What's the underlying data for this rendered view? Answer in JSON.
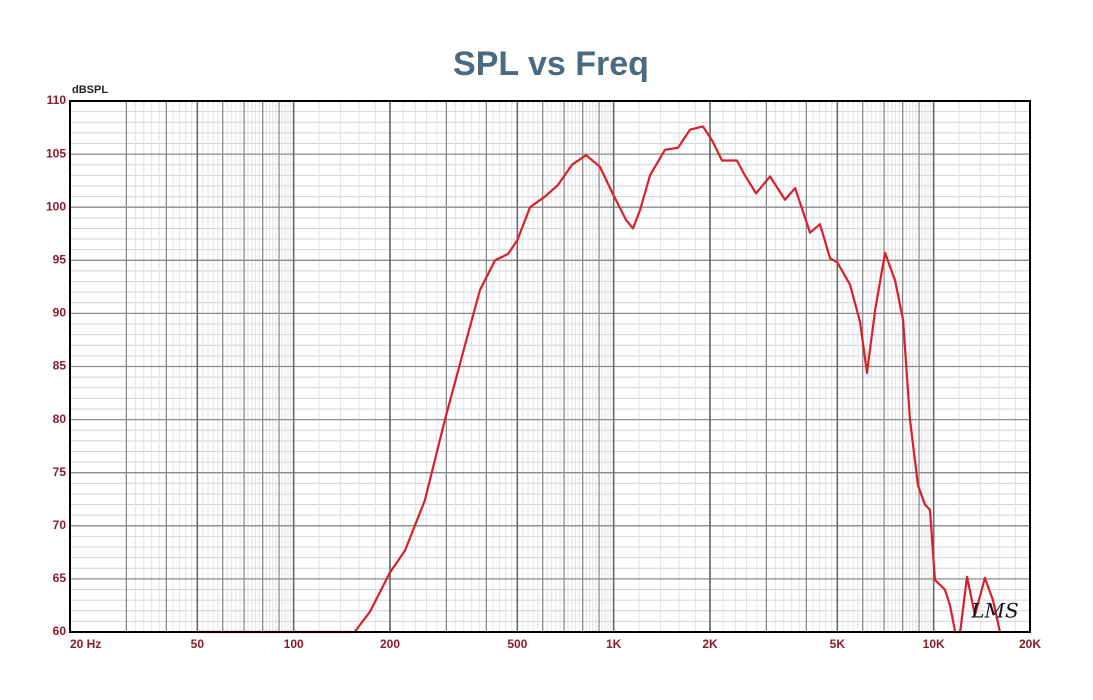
{
  "chart_data": {
    "type": "line",
    "title": "SPL vs Freq",
    "y_label": "dBSPL",
    "annotation": "LMS",
    "log_x": true,
    "grid": true,
    "x": [
      50,
      155,
      173,
      200,
      223,
      257,
      297,
      343,
      382,
      426,
      468,
      500,
      548,
      610,
      670,
      741,
      820,
      906,
      1000,
      1093,
      1149,
      1208,
      1299,
      1446,
      1589,
      1732,
      1902,
      2029,
      2180,
      2427,
      2571,
      2786,
      3081,
      3430,
      3690,
      4107,
      4413,
      4743,
      5000,
      5478,
      5888,
      6188,
      6561,
      7049,
      7575,
      8021,
      8433,
      8933,
      9394,
      9736,
      10093,
      10838,
      11247,
      11672,
      12100,
      12710,
      13460,
      14460,
      15320,
      16110
    ],
    "series": [
      {
        "name": "SPL",
        "color": "#d9202a",
        "values": [
          60,
          60,
          61.9,
          65.6,
          67.7,
          72.4,
          80,
          87,
          92.2,
          95,
          95.6,
          96.9,
          100,
          101,
          102.1,
          104,
          104.9,
          103.8,
          101.1,
          98.8,
          98,
          99.7,
          103,
          105.4,
          105.6,
          107.3,
          107.6,
          106.3,
          104.4,
          104.4,
          103,
          101.3,
          102.9,
          100.7,
          101.8,
          97.6,
          98.4,
          95.2,
          94.8,
          92.7,
          89.2,
          84.4,
          90.3,
          95.7,
          93.1,
          89.4,
          80,
          73.8,
          72,
          71.5,
          64.9,
          64,
          62.5,
          60,
          60,
          65.2,
          61.6,
          65.1,
          63,
          60
        ]
      }
    ],
    "xlim": [
      20,
      20000
    ],
    "xticks": [
      {
        "value": 20,
        "label": "20 Hz"
      },
      50,
      100,
      200,
      500,
      {
        "value": 1000,
        "label": "1K"
      },
      {
        "value": 2000,
        "label": "2K"
      },
      {
        "value": 5000,
        "label": "5K"
      },
      {
        "value": 10000,
        "label": "10K"
      },
      {
        "value": 20000,
        "label": "20K"
      }
    ],
    "ylim": [
      60,
      110
    ],
    "yticks": [
      60,
      65,
      70,
      75,
      80,
      85,
      90,
      95,
      100,
      105,
      110
    ]
  }
}
